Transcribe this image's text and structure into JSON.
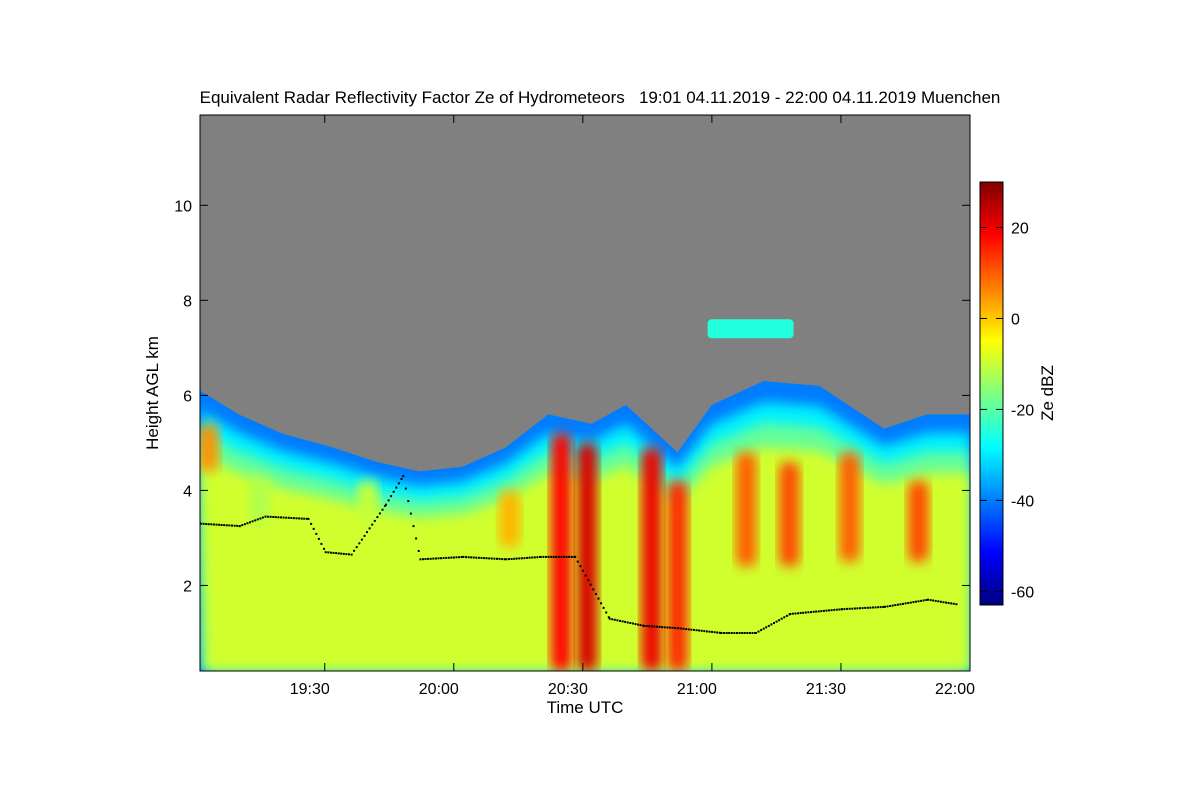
{
  "chart_data": {
    "type": "heatmap",
    "title": "Equivalent Radar Reflectivity Factor Ze of Hydrometeors   19:01 04.11.2019 - 22:00 04.11.2019 Muenchen",
    "xlabel": "Time UTC",
    "ylabel": "Height AGL km",
    "x_ticks": [
      "19:30",
      "20:00",
      "20:30",
      "21:00",
      "21:30",
      "22:00"
    ],
    "x_range_minutes_after_1900": [
      1,
      180
    ],
    "x_ticks_minutes_after_1900": [
      30,
      60,
      90,
      120,
      150,
      180
    ],
    "ylim": [
      0.2,
      11.9
    ],
    "y_ticks": [
      2,
      4,
      6,
      8,
      10
    ],
    "background_color": "#808080",
    "colorbar": {
      "label": "Ze dBZ",
      "range": [
        -63,
        30
      ],
      "ticks": [
        -60,
        -40,
        -20,
        0,
        20
      ],
      "colors": [
        "#00007f",
        "#0000ff",
        "#007fff",
        "#00ffff",
        "#7fff7f",
        "#ffff00",
        "#ff7f00",
        "#ff0000",
        "#7f0000"
      ]
    },
    "echo_top_km": [
      {
        "t": 1,
        "h": 6.1
      },
      {
        "t": 10,
        "h": 5.6
      },
      {
        "t": 20,
        "h": 5.2
      },
      {
        "t": 32,
        "h": 4.9
      },
      {
        "t": 42,
        "h": 4.6
      },
      {
        "t": 52,
        "h": 4.4
      },
      {
        "t": 62,
        "h": 4.5
      },
      {
        "t": 72,
        "h": 4.9
      },
      {
        "t": 82,
        "h": 5.6
      },
      {
        "t": 92,
        "h": 5.4
      },
      {
        "t": 100,
        "h": 5.8
      },
      {
        "t": 112,
        "h": 4.8
      },
      {
        "t": 120,
        "h": 5.8
      },
      {
        "t": 132,
        "h": 6.3
      },
      {
        "t": 145,
        "h": 6.2
      },
      {
        "t": 160,
        "h": 5.3
      },
      {
        "t": 170,
        "h": 5.6
      },
      {
        "t": 180,
        "h": 5.6
      }
    ],
    "cells": [
      {
        "t": 3,
        "h0": 4.4,
        "h1": 5.4,
        "dbz": 5
      },
      {
        "t": 15,
        "h0": 3.3,
        "h1": 4.3,
        "dbz": -12
      },
      {
        "t": 40,
        "h0": 3.2,
        "h1": 4.2,
        "dbz": -10
      },
      {
        "t": 73,
        "h0": 2.8,
        "h1": 4.0,
        "dbz": 2
      },
      {
        "t": 85,
        "h0": 0.2,
        "h1": 5.2,
        "dbz": 18
      },
      {
        "t": 91,
        "h0": 0.2,
        "h1": 5.0,
        "dbz": 22
      },
      {
        "t": 106,
        "h0": 0.2,
        "h1": 4.9,
        "dbz": 20
      },
      {
        "t": 112,
        "h0": 0.2,
        "h1": 4.2,
        "dbz": 15
      },
      {
        "t": 128,
        "h0": 2.4,
        "h1": 4.8,
        "dbz": 10
      },
      {
        "t": 138,
        "h0": 2.4,
        "h1": 4.6,
        "dbz": 12
      },
      {
        "t": 152,
        "h0": 2.5,
        "h1": 4.8,
        "dbz": 10
      },
      {
        "t": 168,
        "h0": 2.5,
        "h1": 4.2,
        "dbz": 12
      }
    ],
    "isolated_layer": {
      "t0": 119,
      "t1": 139,
      "h0": 7.2,
      "h1": 7.6,
      "dbz": -25
    },
    "cloud_base_km": [
      {
        "t": 1,
        "h": 3.3
      },
      {
        "t": 10,
        "h": 3.25
      },
      {
        "t": 16,
        "h": 3.45
      },
      {
        "t": 26,
        "h": 3.4
      },
      {
        "t": 30,
        "h": 2.7
      },
      {
        "t": 36,
        "h": 2.65
      },
      {
        "t": 44,
        "h": 3.7
      },
      {
        "t": 48,
        "h": 4.3
      },
      {
        "t": 52,
        "h": 2.55
      },
      {
        "t": 62,
        "h": 2.6
      },
      {
        "t": 72,
        "h": 2.55
      },
      {
        "t": 80,
        "h": 2.6
      },
      {
        "t": 88,
        "h": 2.6
      },
      {
        "t": 96,
        "h": 1.3
      },
      {
        "t": 104,
        "h": 1.15
      },
      {
        "t": 112,
        "h": 1.1
      },
      {
        "t": 122,
        "h": 1.0
      },
      {
        "t": 130,
        "h": 1.0
      },
      {
        "t": 138,
        "h": 1.4
      },
      {
        "t": 150,
        "h": 1.5
      },
      {
        "t": 160,
        "h": 1.55
      },
      {
        "t": 170,
        "h": 1.7
      },
      {
        "t": 177,
        "h": 1.6
      }
    ]
  }
}
